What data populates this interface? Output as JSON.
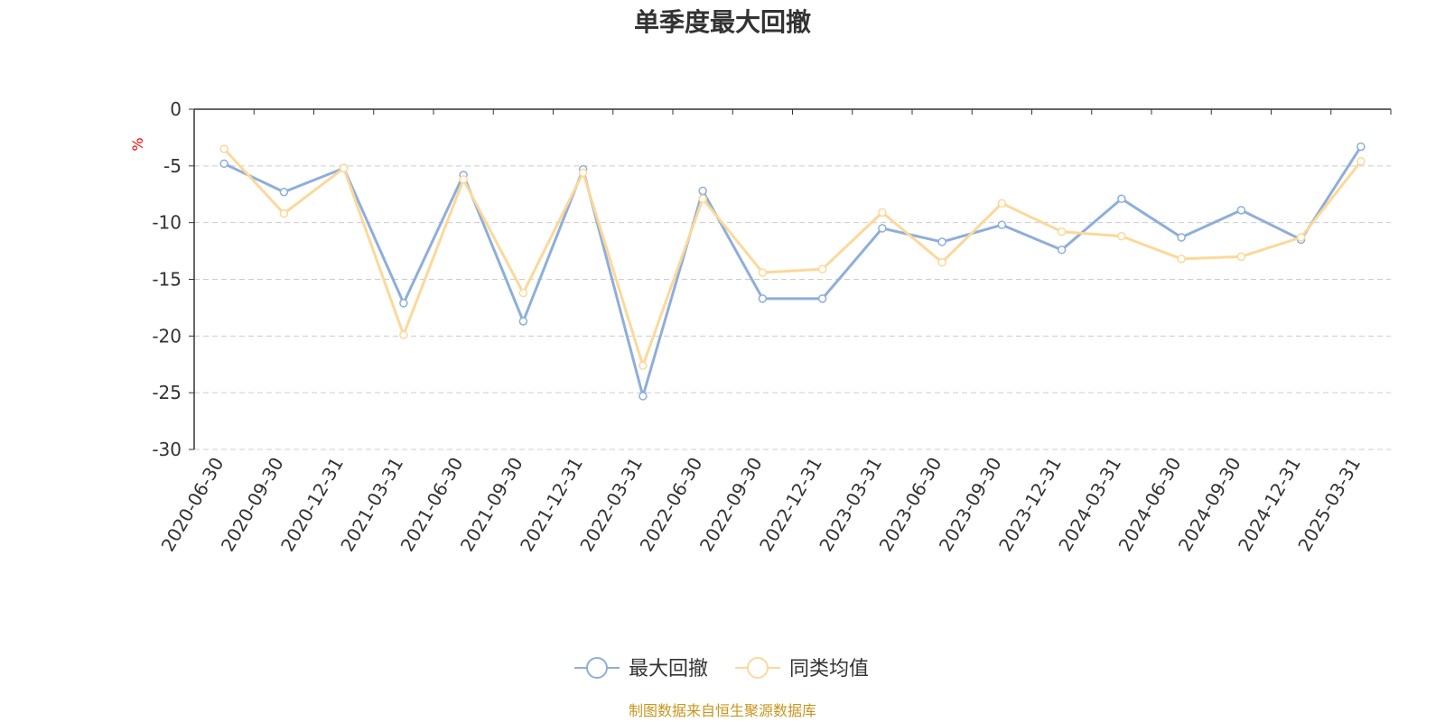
{
  "chart_data": {
    "type": "line",
    "title": "单季度最大回撤",
    "ylabel": "%",
    "ylim": [
      -30,
      0
    ],
    "yticks": [
      0,
      -5,
      -10,
      -15,
      -20,
      -25,
      -30
    ],
    "grid": true,
    "legend_position": "bottom-center",
    "categories": [
      "2020-06-30",
      "2020-09-30",
      "2020-12-31",
      "2021-03-31",
      "2021-06-30",
      "2021-09-30",
      "2021-12-31",
      "2022-03-31",
      "2022-06-30",
      "2022-09-30",
      "2022-12-31",
      "2023-03-31",
      "2023-06-30",
      "2023-09-30",
      "2023-12-31",
      "2024-03-31",
      "2024-06-30",
      "2024-09-30",
      "2024-12-31",
      "2025-03-31"
    ],
    "series": [
      {
        "name": "最大回撤",
        "color": "#8eaedb",
        "values": [
          -4.8,
          -7.3,
          -5.2,
          -17.1,
          -5.8,
          -18.7,
          -5.3,
          -25.3,
          -7.2,
          -16.7,
          -16.7,
          -10.5,
          -11.7,
          -10.2,
          -12.4,
          -7.9,
          -11.3,
          -8.9,
          -11.5,
          -3.3
        ]
      },
      {
        "name": "同类均值",
        "color": "#fcd899",
        "values": [
          -3.5,
          -9.2,
          -5.2,
          -19.9,
          -6.2,
          -16.2,
          -5.6,
          -22.6,
          -7.9,
          -14.4,
          -14.1,
          -9.1,
          -13.5,
          -8.3,
          -10.8,
          -11.2,
          -13.2,
          -13.0,
          -11.3,
          -4.6
        ]
      }
    ],
    "source_note": "制图数据来自恒生聚源数据库",
    "colors": {
      "axis": "#333333",
      "grid": "#cccccc",
      "unit": "#ff0000",
      "source": "#c8961e",
      "title": "#333333"
    }
  }
}
